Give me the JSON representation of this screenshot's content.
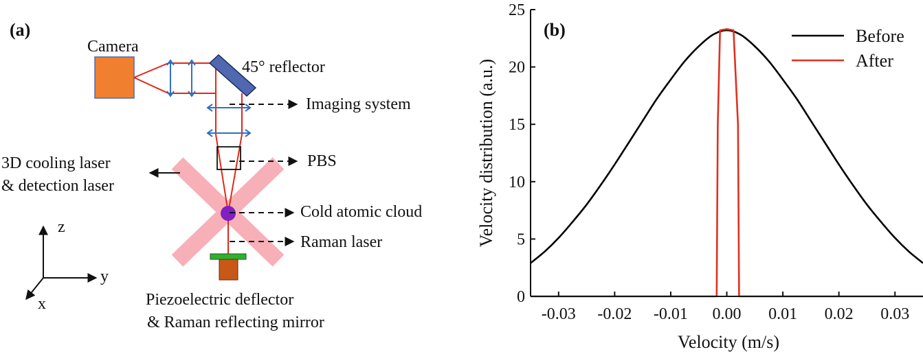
{
  "panel_a": {
    "panel_label": "(a)",
    "labels": {
      "camera": "Camera",
      "reflector": "45° reflector",
      "imaging_system": "Imaging system",
      "pbs": "PBS",
      "cooling_laser_line1": "3D cooling laser",
      "cooling_laser_line2": "& detection laser",
      "cold_atomic_cloud": "Cold atomic cloud",
      "raman_laser": "Raman laser",
      "deflector_line1": "Piezoelectric deflector",
      "deflector_line2": "& Raman reflecting mirror"
    },
    "axes": {
      "z": "z",
      "y": "y",
      "x": "x"
    },
    "colors": {
      "camera": "#f08030",
      "reflector": "#5068b0",
      "beam": "#e02818",
      "lens": "#3070c0",
      "cooling_laser": "#f8b0b8",
      "atom_cloud": "#8020c0",
      "mirror": "#30b030",
      "deflector": "#c85818"
    }
  },
  "panel_b": {
    "panel_label": "(b)"
  },
  "chart_data": {
    "type": "line",
    "xlabel": "Velocity (m/s)",
    "ylabel": "Velocity distribution (a.u.)",
    "xlim": [
      -0.035,
      0.035
    ],
    "ylim": [
      0,
      25
    ],
    "xticks": [
      -0.03,
      -0.02,
      -0.01,
      0.0,
      0.01,
      0.02,
      0.03
    ],
    "xtick_labels": [
      "-0.03",
      "-0.02",
      "-0.01",
      "0.00",
      "0.01",
      "0.02",
      "0.03"
    ],
    "yticks": [
      0,
      5,
      10,
      15,
      20,
      25
    ],
    "ytick_labels": [
      "0",
      "5",
      "10",
      "15",
      "20",
      "25"
    ],
    "grid": false,
    "legend_position": "top-right",
    "series": [
      {
        "name": "Before",
        "color": "#000000",
        "x": [
          -0.035,
          -0.0325,
          -0.03,
          -0.0275,
          -0.025,
          -0.0225,
          -0.02,
          -0.0175,
          -0.015,
          -0.0125,
          -0.01,
          -0.0075,
          -0.005,
          -0.0025,
          0.0,
          0.0025,
          0.005,
          0.0075,
          0.01,
          0.0125,
          0.015,
          0.0175,
          0.02,
          0.0225,
          0.025,
          0.0275,
          0.03,
          0.0325,
          0.035
        ],
        "y": [
          2.9,
          3.9,
          5.1,
          6.5,
          8.0,
          9.7,
          11.5,
          13.4,
          15.3,
          17.2,
          18.9,
          20.5,
          21.8,
          22.8,
          23.2,
          22.8,
          21.8,
          20.5,
          18.9,
          17.2,
          15.3,
          13.4,
          11.5,
          9.7,
          8.0,
          6.5,
          5.1,
          3.9,
          2.9
        ]
      },
      {
        "name": "After",
        "color": "#e03020",
        "x": [
          -0.035,
          -0.0018,
          -0.0016,
          -0.0012,
          0.0,
          0.0012,
          0.002,
          0.0022,
          0.035
        ],
        "y": [
          0,
          0,
          15.0,
          23.2,
          23.3,
          23.2,
          15.0,
          0,
          0
        ]
      }
    ]
  }
}
